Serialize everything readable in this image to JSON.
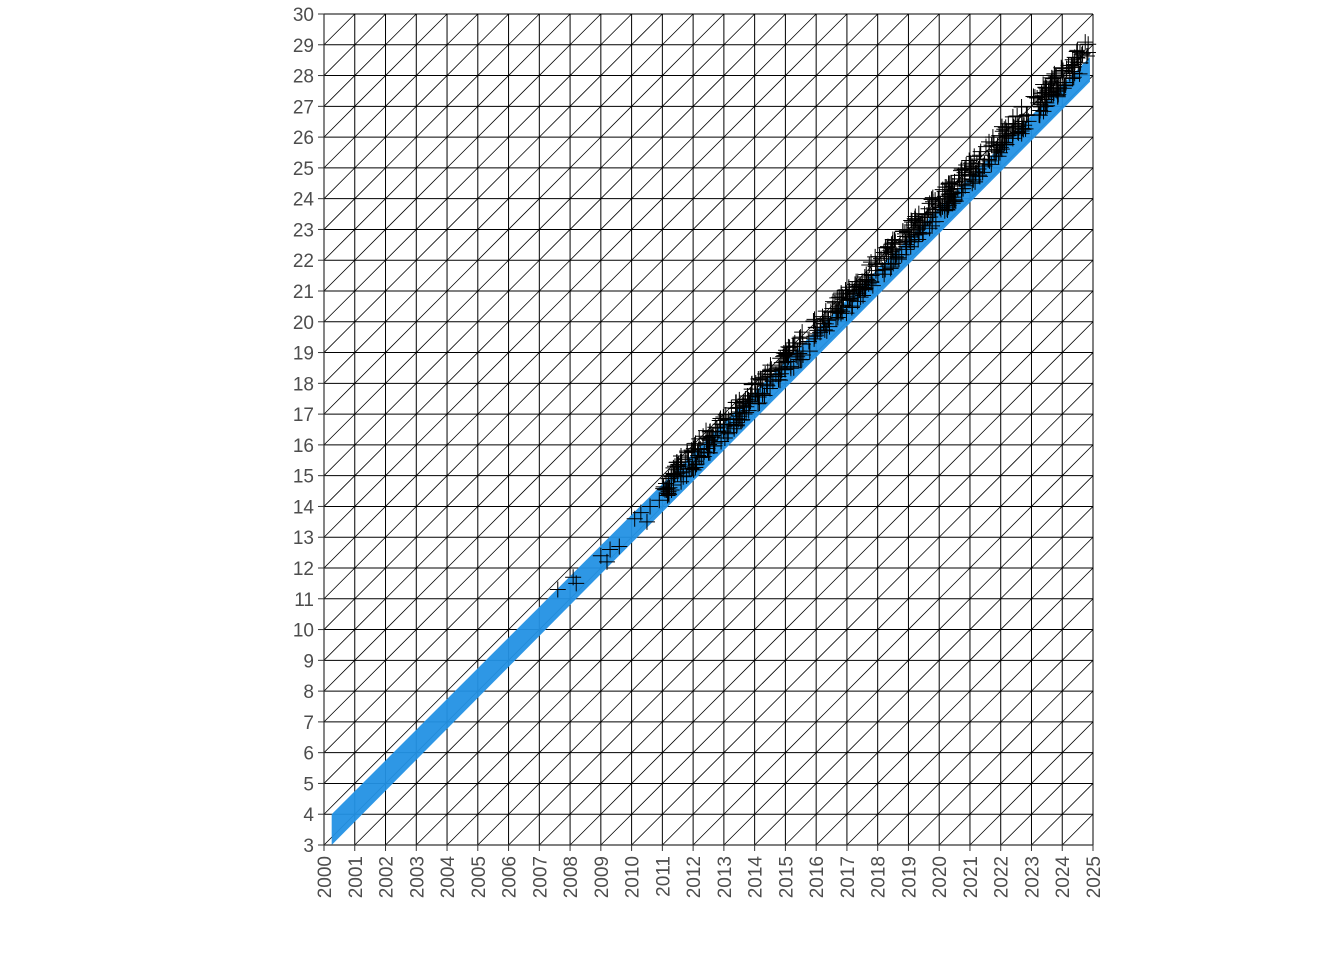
{
  "chart_data": {
    "type": "scatter",
    "title": "",
    "xlabel": "",
    "ylabel": "",
    "xlim": [
      2000,
      2025
    ],
    "ylim": [
      3,
      30
    ],
    "x_ticks": [
      "2000",
      "2001",
      "2002",
      "2003",
      "2004",
      "2005",
      "2006",
      "2007",
      "2008",
      "2009",
      "2010",
      "2011",
      "2012",
      "2013",
      "2014",
      "2015",
      "2016",
      "2017",
      "2018",
      "2019",
      "2020",
      "2021",
      "2022",
      "2023",
      "2024",
      "2025"
    ],
    "y_ticks": [
      "3",
      "4",
      "5",
      "6",
      "7",
      "8",
      "9",
      "10",
      "11",
      "12",
      "13",
      "14",
      "15",
      "16",
      "17",
      "18",
      "19",
      "20",
      "21",
      "22",
      "23",
      "24",
      "25",
      "26",
      "27",
      "28",
      "29",
      "30"
    ],
    "grid": "square grid with diagonal lines in every cell",
    "band": {
      "color": "#2391e4",
      "upper": [
        [
          2000.25,
          4.0
        ],
        [
          2024.9,
          28.6
        ]
      ],
      "lower": [
        [
          2000.25,
          3.0
        ],
        [
          2024.9,
          27.8
        ]
      ]
    },
    "points": {
      "marker": "+",
      "color": "#000000",
      "x_range": [
        2007.5,
        2024.9
      ],
      "trend": {
        "at_2008": 11.5,
        "at_2024": 27.9
      },
      "dense_from": 2011
    }
  }
}
